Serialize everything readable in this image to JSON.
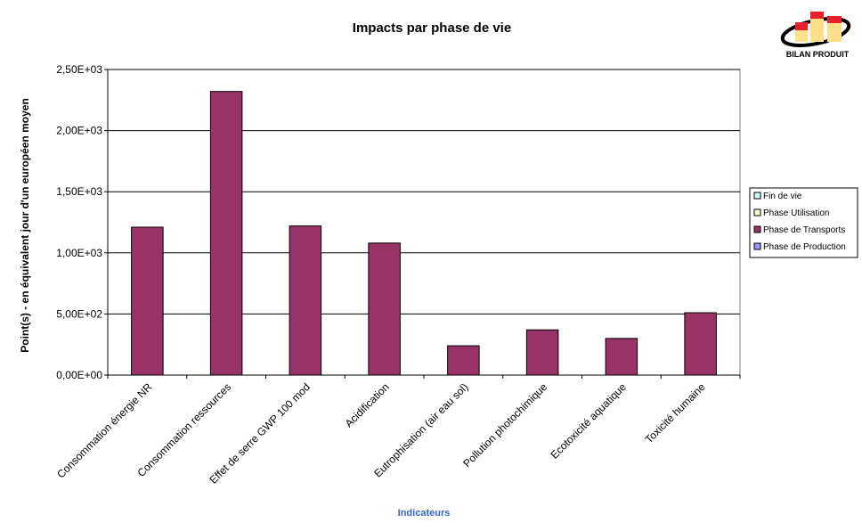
{
  "chart_data": {
    "type": "bar",
    "stacked": true,
    "title": "Impacts par phase de vie",
    "xlabel": "Indicateurs",
    "ylabel": "Point(s)   - en équivalent jour d'un européen moyen",
    "ylim": [
      0,
      2500
    ],
    "y_ticks": [
      0,
      500,
      1000,
      1500,
      2000,
      2500
    ],
    "y_tick_labels": [
      "0,00E+00",
      "5,00E+02",
      "1,00E+03",
      "1,50E+03",
      "2,00E+03",
      "2,50E+03"
    ],
    "grid": true,
    "legend_position": "right",
    "categories": [
      "Consommation énergie NR",
      "Consommation ressources",
      "Effet de serre GWP 100 mod",
      "Acidification",
      "Eutrophisation (air eau sol)",
      "Pollution photochimique",
      "Ecotoxicité aquatique",
      "Toxicité humaine"
    ],
    "series": [
      {
        "name": "Phase de Production",
        "color": "#9999ff",
        "values": [
          0,
          0,
          0,
          0,
          0,
          0,
          0,
          0
        ]
      },
      {
        "name": "Phase de Transports",
        "color": "#993366",
        "values": [
          1210,
          2320,
          1220,
          1080,
          240,
          370,
          300,
          510
        ]
      },
      {
        "name": "Phase Utilisation",
        "color": "#ffffcc",
        "values": [
          0,
          0,
          0,
          0,
          0,
          0,
          0,
          0
        ]
      },
      {
        "name": "Fin de vie",
        "color": "#ccffff",
        "values": [
          0,
          0,
          0,
          0,
          0,
          0,
          0,
          0
        ]
      }
    ],
    "legend_order": [
      "Fin de vie",
      "Phase Utilisation",
      "Phase de Transports",
      "Phase de Production"
    ]
  },
  "logo": {
    "text": "BILAN PRODUIT"
  }
}
